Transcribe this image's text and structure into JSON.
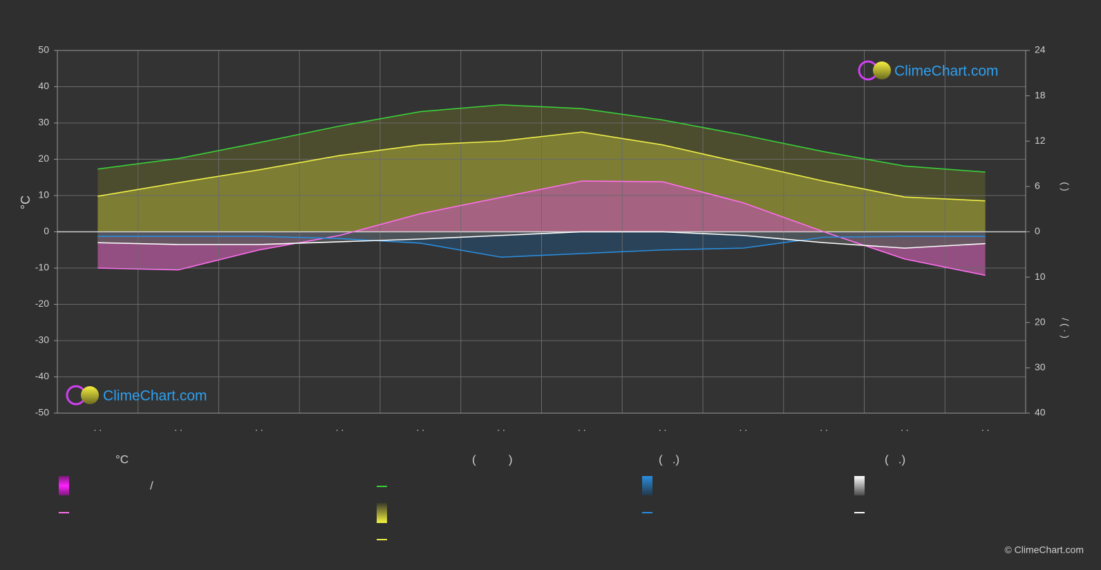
{
  "chart_data": {
    "type": "climate",
    "categories": [
      ". .",
      ". .",
      ". .",
      ". .",
      ". .",
      ". .",
      ". .",
      ". .",
      ". .",
      ". .",
      ". .",
      ". ."
    ],
    "ylim": [
      -50,
      50
    ],
    "yticks": [
      50,
      40,
      30,
      20,
      10,
      0,
      -10,
      -20,
      -30,
      -40,
      -50
    ],
    "ylabel": "°C",
    "y2lim": [
      -24,
      24
    ],
    "y2ticks": [
      24,
      18,
      12,
      6,
      0
    ],
    "y2label": "(    )",
    "y3lim": [
      40,
      -40
    ],
    "y3ticks": [
      10,
      20,
      30,
      40
    ],
    "y3label": "/   ( · )",
    "grid": true,
    "series": [
      {
        "color": "#3ad13a",
        "axis": "y2",
        "area": "#55552e",
        "values": [
          8.3,
          9.7,
          11.8,
          14,
          15.9,
          16.8,
          16.3,
          14.8,
          12.8,
          10.6,
          8.7,
          7.9
        ]
      },
      {
        "color": "#f0f04a",
        "axis": "y2",
        "area": "#8e8e36",
        "values": [
          4.7,
          6.5,
          8.2,
          10.1,
          11.5,
          12,
          13.2,
          11.5,
          9.1,
          6.7,
          4.6,
          4.1
        ]
      },
      {
        "color": "#ff6ef0",
        "axis": "y",
        "area": "#b45a9c",
        "values": [
          -10,
          -10.5,
          -5,
          -1,
          5,
          9.5,
          14,
          13.8,
          8,
          0,
          -7.5,
          -12
        ]
      },
      {
        "color": "#2a8ee0",
        "axis": "y3",
        "area": "#2a4a66",
        "values": [
          1,
          1,
          1,
          1.5,
          2.5,
          5.6,
          4.8,
          4,
          3.6,
          1.2,
          1,
          1
        ]
      },
      {
        "color": "#ffffff",
        "axis": "y3",
        "area": "#5a5a5a",
        "values": [
          2.4,
          2.8,
          2.8,
          2.2,
          1.6,
          0.8,
          0,
          0,
          0.8,
          2.4,
          3.6,
          2.6
        ]
      }
    ]
  },
  "legend": {
    "headers": [
      "°C",
      "(          )",
      "(   .)",
      "(   .)"
    ],
    "note": "/"
  },
  "logo": "ClimeChart.com",
  "copyright": "© ClimeChart.com"
}
